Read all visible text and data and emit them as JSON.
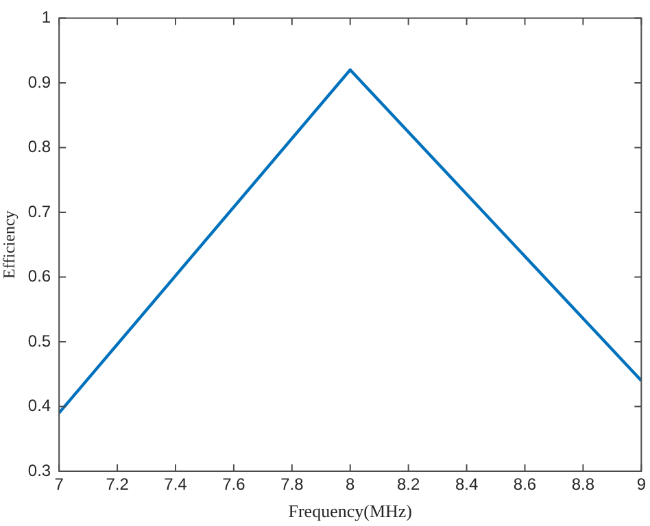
{
  "chart_data": {
    "type": "line",
    "xlabel": "Frequency(MHz)",
    "ylabel": "Efficiency",
    "x": [
      7,
      8,
      9
    ],
    "series": [
      {
        "color": "#0072bd",
        "values": [
          0.39,
          0.92,
          0.44
        ]
      }
    ],
    "xlim": [
      7,
      9
    ],
    "xticks": [
      7,
      7.2,
      7.4,
      7.6,
      7.8,
      8,
      8.2,
      8.4,
      8.6,
      8.8,
      9
    ],
    "ylim": [
      0.3,
      1
    ],
    "yticks": [
      0.3,
      0.4,
      0.5,
      0.6,
      0.7,
      0.8,
      0.9,
      1
    ],
    "grid": false,
    "legend": false,
    "marker": "none",
    "line_style": "solid"
  }
}
